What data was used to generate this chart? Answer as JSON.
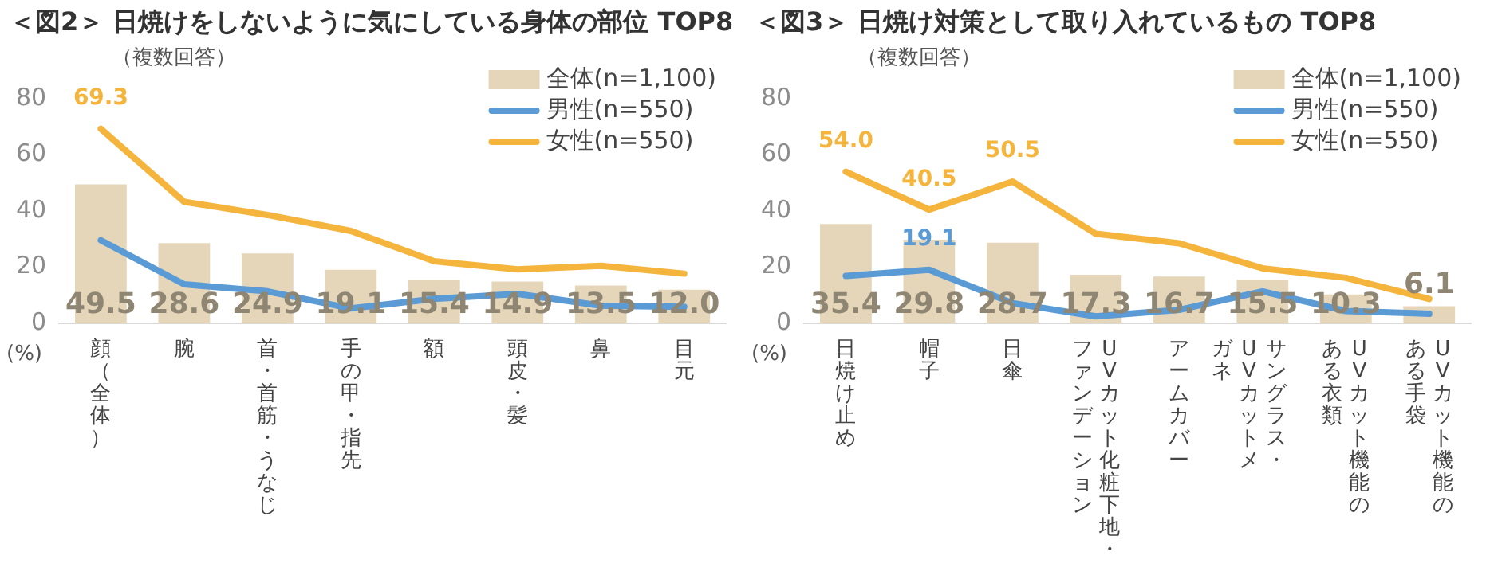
{
  "chart_data": [
    {
      "type": "bar",
      "title": "＜図2＞ 日焼けをしないように気にしている身体の部位 TOP8",
      "subtitle": "（複数回答）",
      "ylabel": "(%)",
      "categories": [
        "顔（全体）",
        "腕",
        "首・首筋・うなじ",
        "手の甲・指先",
        "額",
        "頭皮・髪",
        "鼻",
        "目元"
      ],
      "ylim": [
        0,
        80
      ],
      "yticks": [
        0,
        20,
        40,
        60,
        80
      ],
      "grid": false,
      "legend": "top right",
      "marker": "none",
      "series": [
        {
          "name": "全体(n=1,100)",
          "color": "#e5d6b9",
          "values": [
            49.5,
            28.6,
            24.9,
            19.1,
            15.4,
            14.9,
            13.5,
            12.0
          ],
          "value_labels": [
            "49.5",
            "28.6",
            "24.9",
            "19.1",
            "15.4",
            "14.9",
            "13.5",
            "12.0"
          ]
        },
        {
          "name": "男性(n=550)",
          "type": "line",
          "color": "#5b9bd5",
          "values": [
            29.6,
            13.9,
            11.4,
            5.3,
            8.7,
            10.5,
            6.3,
            5.9
          ]
        },
        {
          "name": "女性(n=550)",
          "type": "line",
          "color": "#f5b43c",
          "values": [
            69.3,
            43.3,
            38.6,
            32.9,
            22.1,
            19.2,
            20.5,
            17.7
          ],
          "value_labels": [
            "69.3",
            null,
            null,
            null,
            null,
            null,
            null,
            null
          ]
        }
      ]
    },
    {
      "type": "bar",
      "title": "＜図3＞ 日焼け対策として取り入れているもの TOP8",
      "subtitle": "（複数回答）",
      "ylabel": "(%)",
      "categories": [
        "日焼け止め",
        "帽子",
        "日傘",
        "UVカット化粧下地・ファンデーション",
        "アームカバー",
        "サングラス・UVカットメガネ",
        "UVカット機能のある衣類",
        "UVカット機能のある手袋"
      ],
      "ylim": [
        0,
        80
      ],
      "yticks": [
        0,
        20,
        40,
        60,
        80
      ],
      "grid": false,
      "legend": "top right",
      "marker": "none",
      "series": [
        {
          "name": "全体(n=1,100)",
          "color": "#e5d6b9",
          "values": [
            35.4,
            29.8,
            28.7,
            17.3,
            16.7,
            15.5,
            10.3,
            6.1
          ],
          "value_labels": [
            "35.4",
            "29.8",
            "28.7",
            "17.3",
            "16.7",
            "15.5",
            "10.3",
            "6.1"
          ]
        },
        {
          "name": "男性(n=550)",
          "type": "line",
          "color": "#5b9bd5",
          "values": [
            16.9,
            19.1,
            7.2,
            2.5,
            4.8,
            11.4,
            4.4,
            3.4
          ],
          "value_labels": [
            null,
            "19.1",
            null,
            null,
            null,
            null,
            null,
            null
          ]
        },
        {
          "name": "女性(n=550)",
          "type": "line",
          "color": "#f5b43c",
          "values": [
            54.0,
            40.5,
            50.5,
            31.9,
            28.5,
            19.6,
            16.2,
            8.7
          ],
          "value_labels": [
            "54.0",
            "40.5",
            "50.5",
            null,
            null,
            null,
            null,
            null
          ]
        }
      ]
    }
  ]
}
